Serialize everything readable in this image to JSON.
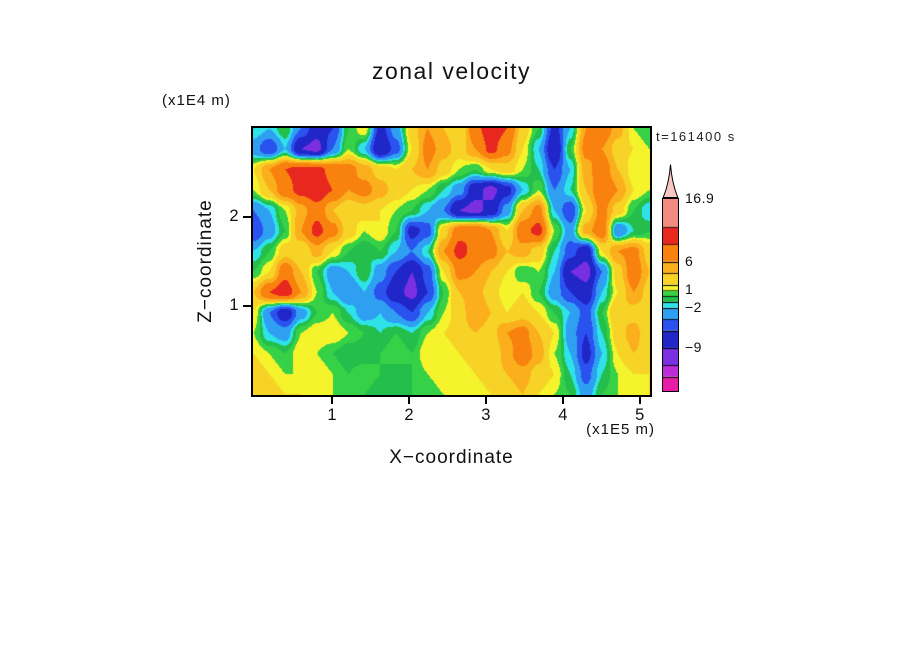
{
  "figure": {
    "title": "zonal velocity",
    "time_annotation": "t=161400 s",
    "x_axis": {
      "label": "X−coordinate",
      "units": "(x1E5 m)"
    },
    "y_axis": {
      "label": "Z−coordinate",
      "units": "(x1E4 m)"
    }
  },
  "chart_data": {
    "type": "heatmap",
    "title": "zonal velocity",
    "xlabel": "X−coordinate",
    "xlabel_units": "(x1E5 m)",
    "ylabel": "Z−coordinate",
    "ylabel_units": "(x1E4 m)",
    "annotation": "t=161400 s",
    "x_range": [
      -0.03,
      5.13
    ],
    "y_range": [
      0,
      3.0
    ],
    "x_ticks": [
      1,
      2,
      3,
      4,
      5
    ],
    "y_ticks": [
      1,
      2
    ],
    "value_max": 16.9,
    "colorbar_min": -16.5,
    "levels": [
      -14,
      -12,
      -9,
      -6,
      -4,
      -2,
      -1,
      0,
      1,
      2,
      4,
      6,
      9,
      12,
      16.9
    ],
    "palette": [
      "#E81CA8",
      "#BB2BD8",
      "#7A2FE0",
      "#2026C8",
      "#2A52EE",
      "#2F9FF2",
      "#2EE2E8",
      "#23BE4B",
      "#36D147",
      "#F4F32C",
      "#F6D326",
      "#FBAF1C",
      "#F9820F",
      "#E8281E",
      "#F08C80",
      "#F5C6C2"
    ],
    "colorbar_labels": [
      {
        "value": 16.9,
        "label": "16.9"
      },
      {
        "value": 6,
        "label": "6"
      },
      {
        "value": 1,
        "label": "1"
      },
      {
        "value": -2,
        "label": "−2"
      },
      {
        "value": -9,
        "label": "−9"
      }
    ],
    "grid": {
      "nx": 26,
      "nz": 14,
      "order": "rows top (z max) to bottom (z=0)",
      "values": [
        [
          -1,
          -2,
          0,
          -4,
          -8,
          -6,
          0,
          2,
          -7,
          -3,
          3,
          6,
          4,
          2,
          8,
          11,
          9,
          3,
          0,
          -7,
          -2,
          6,
          8,
          5,
          1,
          0
        ],
        [
          -3,
          -6,
          -2,
          -9,
          -10,
          -4,
          1,
          -2,
          -9,
          -5,
          2,
          7,
          5,
          3,
          6,
          10,
          7,
          2,
          -2,
          -9,
          0,
          7,
          6,
          3,
          2,
          1
        ],
        [
          2,
          6,
          9,
          10,
          10,
          8,
          7,
          5,
          3,
          2,
          4,
          6,
          3,
          1,
          0,
          2,
          3,
          1,
          -1,
          -6,
          -2,
          5,
          8,
          4,
          1,
          2
        ],
        [
          1,
          4,
          8,
          10,
          11,
          9,
          6,
          7,
          5,
          3,
          2,
          1,
          -1,
          -3,
          -8,
          -10,
          -7,
          -2,
          1,
          -4,
          -1,
          4,
          9,
          6,
          2,
          1
        ],
        [
          -4,
          -2,
          1,
          5,
          8,
          4,
          2,
          3,
          2,
          1,
          0,
          -2,
          -4,
          -9,
          -10,
          -8,
          -3,
          4,
          7,
          -2,
          -6,
          2,
          7,
          3,
          0,
          -2
        ],
        [
          -6,
          -3,
          0,
          6,
          10,
          7,
          3,
          1,
          2,
          0,
          -7,
          -5,
          3,
          8,
          9,
          6,
          2,
          8,
          10,
          1,
          -3,
          5,
          8,
          -4,
          -1,
          0
        ],
        [
          -2,
          0,
          3,
          2,
          5,
          2,
          0,
          -1,
          0,
          -2,
          -4,
          -1,
          6,
          10,
          8,
          7,
          4,
          5,
          3,
          -1,
          -5,
          -8,
          2,
          6,
          7,
          3
        ],
        [
          0,
          2,
          8,
          4,
          0,
          -3,
          -2,
          0,
          -3,
          -6,
          -9,
          -5,
          2,
          7,
          6,
          4,
          2,
          0,
          1,
          -2,
          -9,
          -10,
          -4,
          3,
          8,
          4
        ],
        [
          4,
          9,
          11,
          6,
          1,
          -2,
          -4,
          -2,
          -5,
          -8,
          -10,
          -6,
          0,
          4,
          5,
          3,
          1,
          2,
          0,
          -3,
          -6,
          -8,
          -2,
          2,
          6,
          3
        ],
        [
          2,
          -4,
          -8,
          -3,
          0,
          1,
          -1,
          -3,
          -2,
          -4,
          -6,
          -2,
          1,
          3,
          6,
          4,
          2,
          3,
          2,
          0,
          -2,
          -5,
          0,
          4,
          3,
          2
        ],
        [
          1,
          -2,
          -3,
          1,
          2,
          2,
          1,
          0,
          -1,
          0,
          -1,
          1,
          2,
          3,
          4,
          3,
          6,
          7,
          4,
          2,
          -3,
          -6,
          -1,
          3,
          5,
          2
        ],
        [
          2,
          1,
          0,
          2,
          1,
          0,
          -1,
          -1,
          0,
          1,
          0,
          2,
          1,
          2,
          3,
          2,
          5,
          8,
          5,
          1,
          -2,
          -7,
          -2,
          2,
          4,
          3
        ],
        [
          3,
          2,
          1,
          1,
          2,
          1,
          0,
          1,
          0,
          -1,
          0,
          1,
          2,
          1,
          2,
          3,
          4,
          5,
          3,
          2,
          -1,
          -5,
          -1,
          1,
          2,
          2
        ],
        [
          2,
          3,
          2,
          2,
          1,
          1,
          0,
          0,
          -1,
          -1,
          0,
          0,
          1,
          1,
          1,
          2,
          3,
          4,
          2,
          1,
          0,
          -3,
          0,
          1,
          1,
          2
        ]
      ]
    }
  }
}
